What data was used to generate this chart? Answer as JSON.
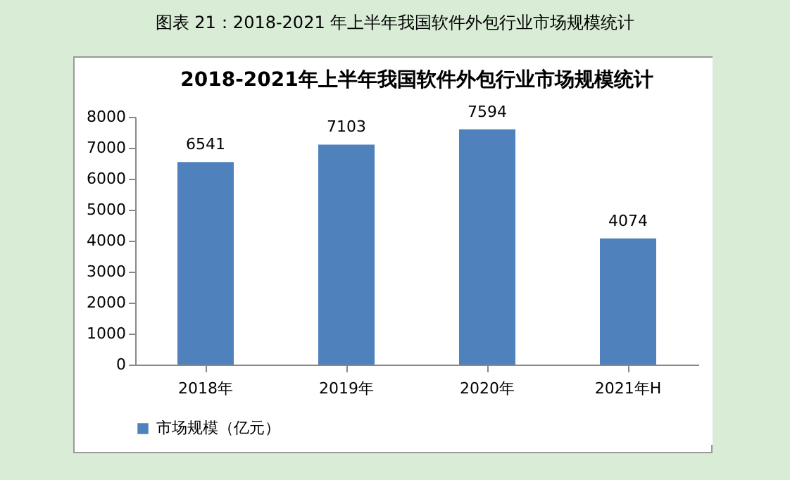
{
  "chart_data": {
    "type": "bar",
    "title": "2018-2021年上半年我国软件外包行业市场规模统计",
    "annotations": [
      "图表 21：2018-2021 年上半年我国软件外包行业市场规模统计"
    ],
    "categories": [
      "2018年",
      "2019年",
      "2020年",
      "2021年H"
    ],
    "series": [
      {
        "name": "市场规模（亿元）",
        "color": "#4f81bd",
        "values": [
          6541,
          7103,
          7594,
          4074
        ]
      }
    ],
    "ylim": [
      0,
      8000
    ],
    "yticks": [
      0,
      1000,
      2000,
      3000,
      4000,
      5000,
      6000,
      7000,
      8000
    ],
    "grid": false,
    "legend": "bottom",
    "data_labels": true
  }
}
